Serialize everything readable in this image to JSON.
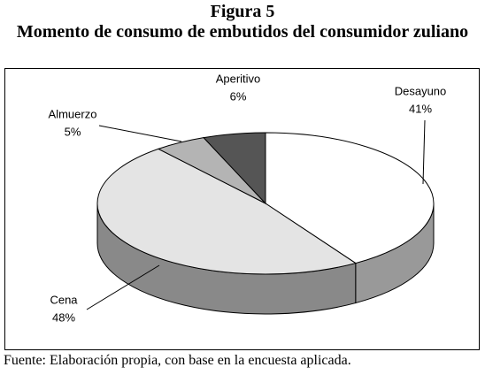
{
  "chart_data": {
    "type": "pie3d",
    "figure_label": "Figura 5",
    "title": "Momento de consumo de embutidos del consumidor zuliano",
    "categories": [
      "Desayuno",
      "Cena",
      "Almuerzo",
      "Aperitivo"
    ],
    "values": [
      41,
      48,
      5,
      6
    ],
    "value_labels": [
      "41%",
      "48%",
      "5%",
      "6%"
    ],
    "colors": [
      "#ffffff",
      "#e4e4e4",
      "#b4b4b4",
      "#555555"
    ],
    "source": "Fuente: Elaboración propia, con base en la encuesta aplicada."
  }
}
